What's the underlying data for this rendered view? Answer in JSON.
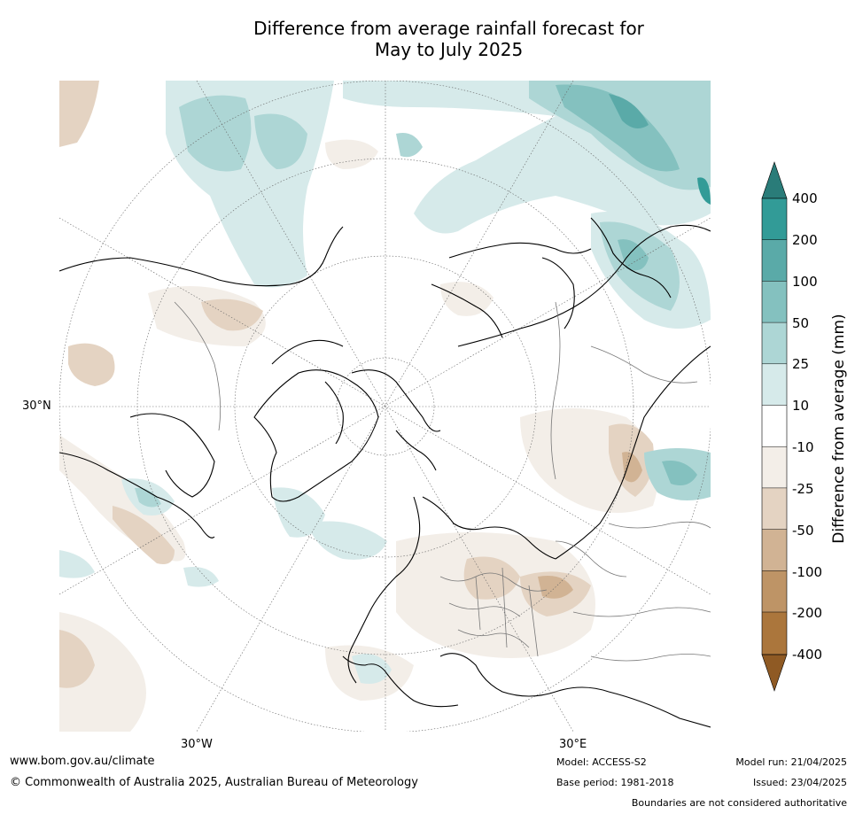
{
  "title_line1": "Difference from average rainfall forecast for",
  "title_line2": "May to July 2025",
  "labels": {
    "lat_30n": "30°N",
    "lon_30w": "30°W",
    "lon_30e": "30°E"
  },
  "colorbar": {
    "title": "Difference from average (mm)",
    "ticks": [
      "400",
      "200",
      "100",
      "50",
      "25",
      "10",
      "-10",
      "-25",
      "-50",
      "-100",
      "-200",
      "-400"
    ],
    "colors": {
      "over": "#2a7c79",
      "b_200_400": "#329b97",
      "b_100_200": "#5aaaa8",
      "b_50_100": "#84c1bf",
      "b_25_50": "#add6d5",
      "b_10_25": "#d6eaea",
      "b_neutral": "#ffffff",
      "b_m25_m10": "#f3eee8",
      "b_m50_m25": "#e4d3c2",
      "b_m100_m50": "#d1b394",
      "b_m200_m100": "#be9466",
      "b_m400_m200": "#ab763c",
      "under": "#8f5a24"
    }
  },
  "footer": {
    "url": "www.bom.gov.au/climate",
    "copyright": "© Commonwealth of Australia 2025, Australian Bureau of Meteorology",
    "model": "Model: ACCESS-S2",
    "base_period": "Base period: 1981-2018",
    "model_run": "Model run: 21/04/2025",
    "issued": "Issued: 23/04/2025",
    "disclaimer": "Boundaries are not considered authoritative"
  }
}
